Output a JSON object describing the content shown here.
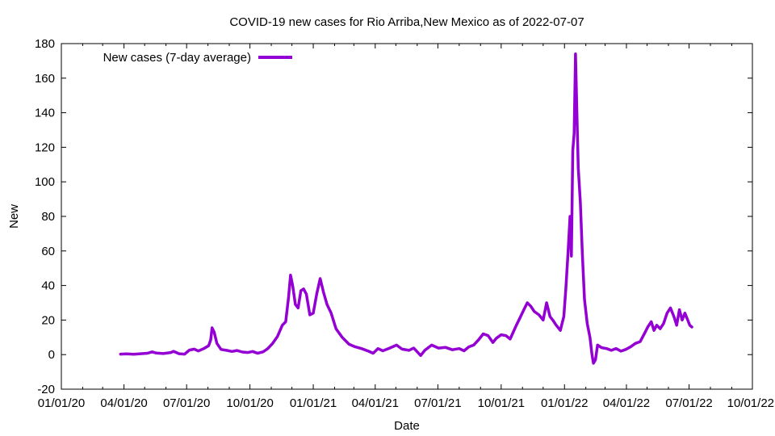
{
  "chart_data": {
    "type": "line",
    "title": "COVID-19 new cases for Rio Arriba,New Mexico as of 2022-07-07",
    "xlabel": "Date",
    "ylabel": "New",
    "xlim": [
      "2020-01-01",
      "2022-10-01"
    ],
    "ylim": [
      -20,
      180
    ],
    "x_ticks": [
      "01/01/20",
      "04/01/20",
      "07/01/20",
      "10/01/20",
      "01/01/21",
      "04/01/21",
      "07/01/21",
      "10/01/21",
      "01/01/22",
      "04/01/22",
      "07/01/22",
      "10/01/22"
    ],
    "y_ticks": [
      -20,
      0,
      20,
      40,
      60,
      80,
      100,
      120,
      140,
      160,
      180
    ],
    "grid": false,
    "legend_position": "top-left",
    "series": [
      {
        "name": "New cases (7-day average)",
        "color": "#9400d3",
        "points": [
          [
            "2020-03-27",
            0.3
          ],
          [
            "2020-04-05",
            0.4
          ],
          [
            "2020-04-15",
            0.2
          ],
          [
            "2020-04-25",
            0.5
          ],
          [
            "2020-05-05",
            0.8
          ],
          [
            "2020-05-12",
            1.6
          ],
          [
            "2020-05-18",
            0.9
          ],
          [
            "2020-05-28",
            0.6
          ],
          [
            "2020-06-08",
            1.2
          ],
          [
            "2020-06-12",
            1.9
          ],
          [
            "2020-06-20",
            0.5
          ],
          [
            "2020-06-28",
            0.3
          ],
          [
            "2020-07-05",
            2.6
          ],
          [
            "2020-07-12",
            3.2
          ],
          [
            "2020-07-18",
            2.1
          ],
          [
            "2020-07-26",
            3.5
          ],
          [
            "2020-08-02",
            5.2
          ],
          [
            "2020-08-05",
            8.5
          ],
          [
            "2020-08-07",
            15.5
          ],
          [
            "2020-08-10",
            13.0
          ],
          [
            "2020-08-14",
            6.5
          ],
          [
            "2020-08-20",
            3.0
          ],
          [
            "2020-08-28",
            2.5
          ],
          [
            "2020-09-05",
            1.8
          ],
          [
            "2020-09-12",
            2.4
          ],
          [
            "2020-09-20",
            1.5
          ],
          [
            "2020-09-28",
            1.2
          ],
          [
            "2020-10-05",
            1.8
          ],
          [
            "2020-10-12",
            0.8
          ],
          [
            "2020-10-20",
            1.6
          ],
          [
            "2020-10-27",
            3.5
          ],
          [
            "2020-11-03",
            6.5
          ],
          [
            "2020-11-10",
            10.5
          ],
          [
            "2020-11-17",
            17.0
          ],
          [
            "2020-11-22",
            19.0
          ],
          [
            "2020-11-26",
            33.0
          ],
          [
            "2020-11-29",
            46.0
          ],
          [
            "2020-12-02",
            40.0
          ],
          [
            "2020-12-06",
            29.0
          ],
          [
            "2020-12-10",
            27.0
          ],
          [
            "2020-12-14",
            37.0
          ],
          [
            "2020-12-18",
            38.0
          ],
          [
            "2020-12-22",
            35.0
          ],
          [
            "2020-12-27",
            23.0
          ],
          [
            "2021-01-01",
            24.0
          ],
          [
            "2021-01-06",
            35.0
          ],
          [
            "2021-01-11",
            44.0
          ],
          [
            "2021-01-16",
            36.0
          ],
          [
            "2021-01-21",
            29.0
          ],
          [
            "2021-01-27",
            24.0
          ],
          [
            "2021-02-03",
            15.0
          ],
          [
            "2021-02-12",
            10.0
          ],
          [
            "2021-02-22",
            6.0
          ],
          [
            "2021-03-03",
            4.5
          ],
          [
            "2021-03-12",
            3.5
          ],
          [
            "2021-03-22",
            2.0
          ],
          [
            "2021-03-29",
            0.8
          ],
          [
            "2021-04-05",
            3.5
          ],
          [
            "2021-04-12",
            2.2
          ],
          [
            "2021-04-22",
            3.8
          ],
          [
            "2021-05-02",
            5.5
          ],
          [
            "2021-05-10",
            3.2
          ],
          [
            "2021-05-20",
            2.5
          ],
          [
            "2021-05-27",
            3.8
          ],
          [
            "2021-06-06",
            -0.5
          ],
          [
            "2021-06-12",
            2.5
          ],
          [
            "2021-06-22",
            5.5
          ],
          [
            "2021-07-02",
            3.8
          ],
          [
            "2021-07-12",
            4.2
          ],
          [
            "2021-07-22",
            2.8
          ],
          [
            "2021-08-01",
            3.5
          ],
          [
            "2021-08-08",
            2.2
          ],
          [
            "2021-08-15",
            4.5
          ],
          [
            "2021-08-22",
            5.5
          ],
          [
            "2021-08-29",
            8.5
          ],
          [
            "2021-09-05",
            12.0
          ],
          [
            "2021-09-12",
            11.0
          ],
          [
            "2021-09-19",
            7.0
          ],
          [
            "2021-09-24",
            9.5
          ],
          [
            "2021-10-01",
            11.5
          ],
          [
            "2021-10-08",
            11.0
          ],
          [
            "2021-10-14",
            9.0
          ],
          [
            "2021-10-18",
            12.5
          ],
          [
            "2021-10-23",
            17.0
          ],
          [
            "2021-10-28",
            21.0
          ],
          [
            "2021-11-03",
            26.0
          ],
          [
            "2021-11-08",
            30.0
          ],
          [
            "2021-11-13",
            28.0
          ],
          [
            "2021-11-18",
            25.0
          ],
          [
            "2021-11-25",
            23.0
          ],
          [
            "2021-12-01",
            20.0
          ],
          [
            "2021-12-06",
            30.0
          ],
          [
            "2021-12-11",
            22.0
          ],
          [
            "2021-12-15",
            20.0
          ],
          [
            "2021-12-20",
            17.0
          ],
          [
            "2021-12-26",
            14.0
          ],
          [
            "2021-12-31",
            22.0
          ],
          [
            "2022-01-03",
            38.0
          ],
          [
            "2022-01-06",
            58.0
          ],
          [
            "2022-01-09",
            80.0
          ],
          [
            "2022-01-11",
            57.0
          ],
          [
            "2022-01-13",
            118.0
          ],
          [
            "2022-01-15",
            128.0
          ],
          [
            "2022-01-17",
            174.0
          ],
          [
            "2022-01-19",
            140.0
          ],
          [
            "2022-01-21",
            108.0
          ],
          [
            "2022-01-24",
            88.0
          ],
          [
            "2022-01-27",
            58.0
          ],
          [
            "2022-01-30",
            32.0
          ],
          [
            "2022-02-03",
            18.0
          ],
          [
            "2022-02-07",
            10.0
          ],
          [
            "2022-02-10",
            0.0
          ],
          [
            "2022-02-12",
            -5.0
          ],
          [
            "2022-02-15",
            -3.0
          ],
          [
            "2022-02-18",
            5.5
          ],
          [
            "2022-02-24",
            4.0
          ],
          [
            "2022-03-03",
            3.5
          ],
          [
            "2022-03-10",
            2.5
          ],
          [
            "2022-03-17",
            3.5
          ],
          [
            "2022-03-24",
            2.0
          ],
          [
            "2022-03-31",
            3.0
          ],
          [
            "2022-04-07",
            4.5
          ],
          [
            "2022-04-14",
            6.5
          ],
          [
            "2022-04-21",
            7.5
          ],
          [
            "2022-04-27",
            12.0
          ],
          [
            "2022-05-02",
            16.0
          ],
          [
            "2022-05-07",
            19.0
          ],
          [
            "2022-05-11",
            14.0
          ],
          [
            "2022-05-15",
            17.0
          ],
          [
            "2022-05-20",
            15.0
          ],
          [
            "2022-05-25",
            18.0
          ],
          [
            "2022-05-30",
            24.0
          ],
          [
            "2022-06-04",
            27.0
          ],
          [
            "2022-06-09",
            22.0
          ],
          [
            "2022-06-13",
            17.0
          ],
          [
            "2022-06-17",
            26.0
          ],
          [
            "2022-06-21",
            20.0
          ],
          [
            "2022-06-25",
            24.0
          ],
          [
            "2022-06-29",
            20.0
          ],
          [
            "2022-07-02",
            17.0
          ],
          [
            "2022-07-05",
            16.0
          ]
        ]
      }
    ]
  }
}
